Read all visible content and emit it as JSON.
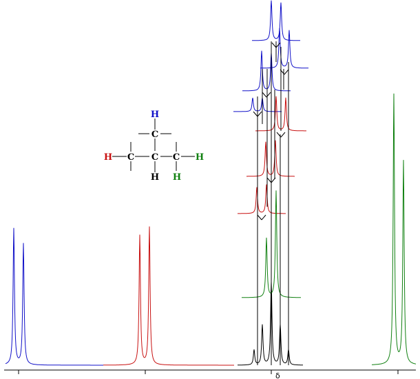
{
  "molecule": {
    "atoms": [
      {
        "label": "H",
        "color": "#1010c8"
      },
      {
        "label": "C",
        "color": "#000000"
      },
      {
        "label": "H",
        "color": "#c81010"
      },
      {
        "label": "C",
        "color": "#000000"
      },
      {
        "label": "C",
        "color": "#000000"
      },
      {
        "label": "C",
        "color": "#000000"
      },
      {
        "label": "H",
        "color": "#108010"
      },
      {
        "label": "H",
        "color": "#000000"
      },
      {
        "label": "H",
        "color": "#108010"
      }
    ]
  },
  "axis": {
    "label": "δ"
  },
  "colors": {
    "blue": "#1010c8",
    "red": "#c81010",
    "green": "#108010",
    "black": "#000000"
  },
  "spectrum": {
    "peaks": [
      {
        "name": "blue-doublet",
        "color": "blue"
      },
      {
        "name": "red-doublet",
        "color": "red"
      },
      {
        "name": "black-multiplet",
        "color": "black"
      },
      {
        "name": "green-doublet",
        "color": "green"
      }
    ]
  }
}
